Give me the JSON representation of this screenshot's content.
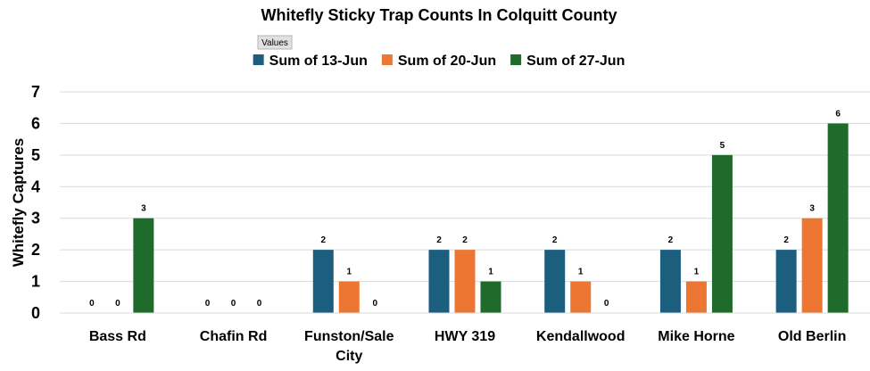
{
  "chart_data": {
    "type": "bar",
    "title": "Whitefly Sticky Trap Counts In Colquitt County",
    "field_button": "Values",
    "ylabel": "Whitefly Captures",
    "xlabel": "",
    "ylim": [
      0,
      7
    ],
    "yticks": [
      0,
      1,
      2,
      3,
      4,
      5,
      6,
      7
    ],
    "grid": true,
    "legend_position": "top",
    "categories": [
      "Bass Rd",
      "Chafin Rd",
      "Funston/Sale City",
      "HWY 319",
      "Kendallwood",
      "Mike Horne",
      "Old Berlin"
    ],
    "category_lines": [
      [
        "Bass Rd"
      ],
      [
        "Chafin Rd"
      ],
      [
        "Funston/Sale",
        "City"
      ],
      [
        "HWY 319"
      ],
      [
        "Kendallwood"
      ],
      [
        "Mike Horne"
      ],
      [
        "Old Berlin"
      ]
    ],
    "series": [
      {
        "name": "Sum of 13-Jun",
        "color": "#1b5e7e",
        "values": [
          0,
          0,
          2,
          2,
          2,
          2,
          2
        ]
      },
      {
        "name": "Sum of 20-Jun",
        "color": "#ed7632",
        "values": [
          0,
          0,
          1,
          2,
          1,
          1,
          3
        ]
      },
      {
        "name": "Sum of 27-Jun",
        "color": "#1f6b2c",
        "values": [
          3,
          0,
          0,
          1,
          0,
          5,
          6
        ]
      }
    ]
  }
}
